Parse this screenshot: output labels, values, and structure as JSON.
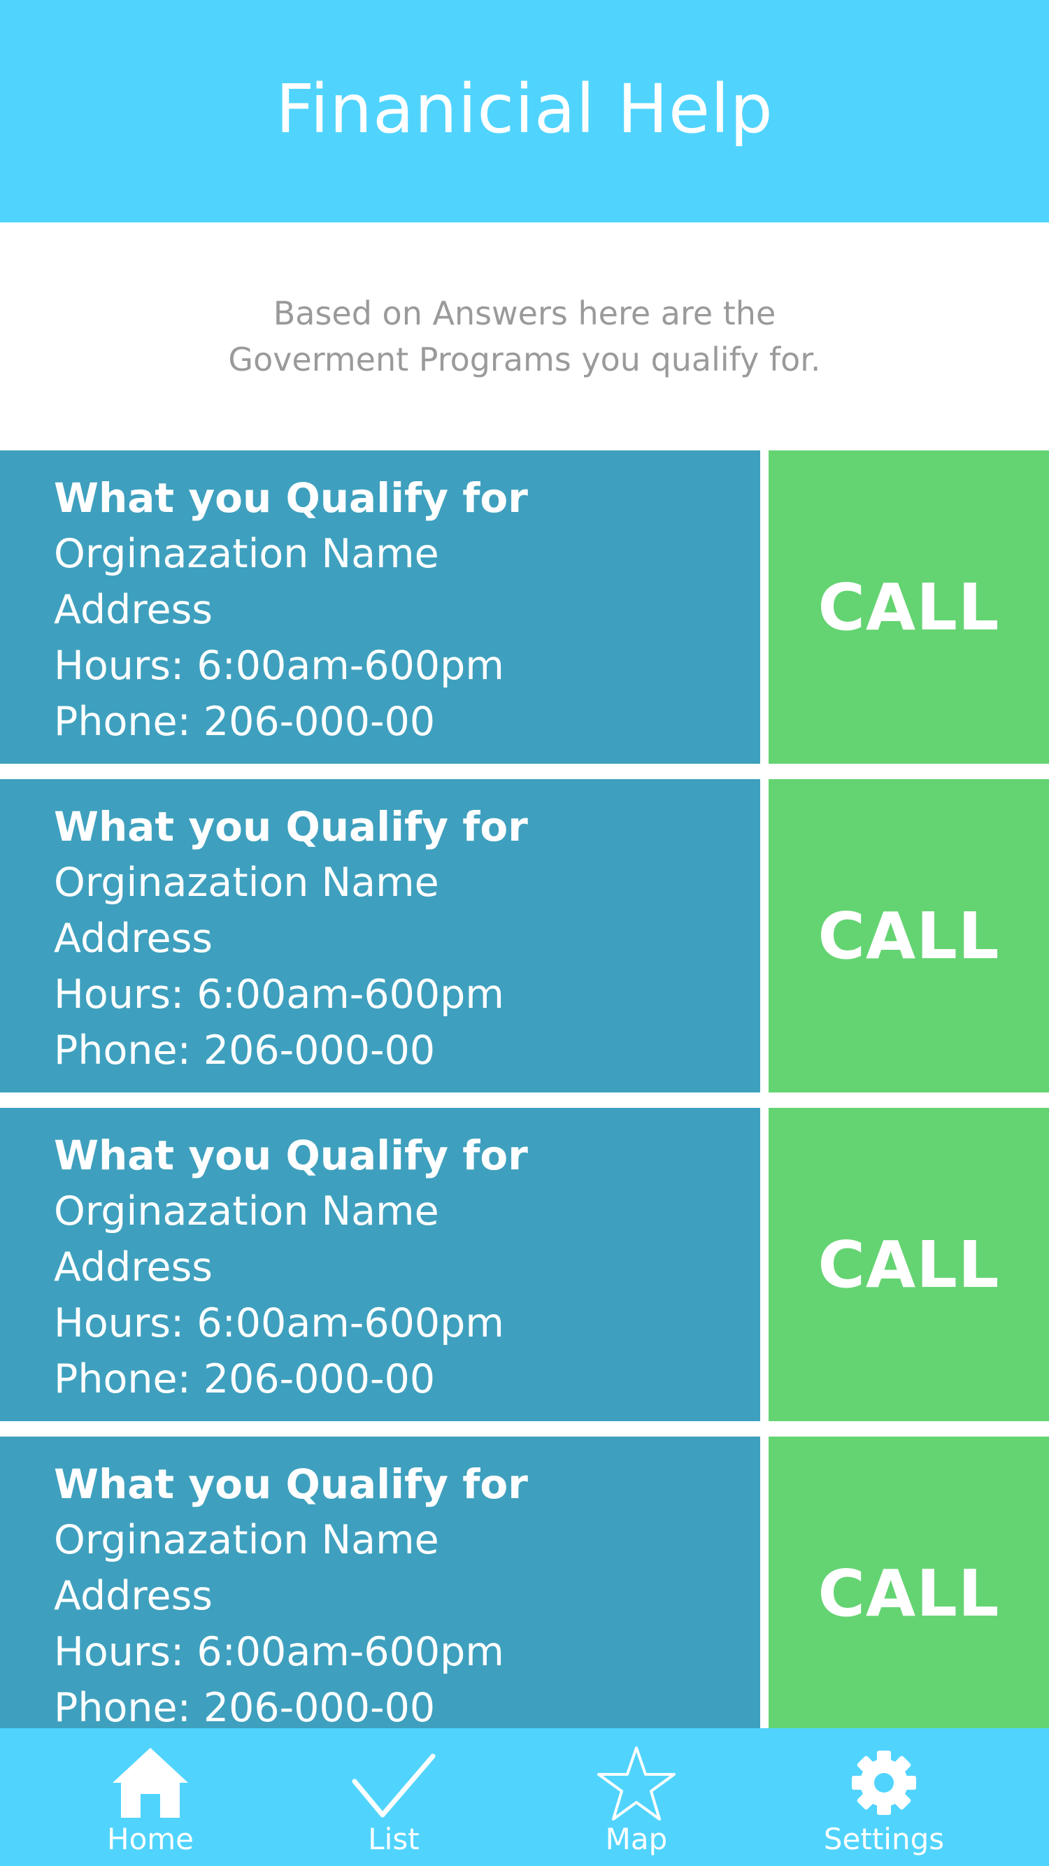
{
  "header": {
    "title": "Finanicial Help"
  },
  "intro": {
    "text": "Based on Answers here are the Goverment Programs you qualify for."
  },
  "programs": [
    {
      "heading": "What you Qualify for",
      "organization": "Orginazation Name",
      "address": "Address",
      "hours": "Hours: 6:00am-600pm",
      "phone": "Phone: 206-000-00",
      "call_label": "CALL"
    },
    {
      "heading": "What you Qualify for",
      "organization": "Orginazation Name",
      "address": "Address",
      "hours": "Hours: 6:00am-600pm",
      "phone": "Phone: 206-000-00",
      "call_label": "CALL"
    },
    {
      "heading": "What you Qualify for",
      "organization": "Orginazation Name",
      "address": "Address",
      "hours": "Hours: 6:00am-600pm",
      "phone": "Phone: 206-000-00",
      "call_label": "CALL"
    },
    {
      "heading": "What you Qualify for",
      "organization": "Orginazation Name",
      "address": "Address",
      "hours": "Hours: 6:00am-600pm",
      "phone": "Phone: 206-000-00",
      "call_label": "CALL"
    }
  ],
  "tabbar": {
    "items": [
      {
        "label": "Home",
        "icon": "home-icon"
      },
      {
        "label": "List",
        "icon": "checkmark-icon"
      },
      {
        "label": "Map",
        "icon": "star-icon"
      },
      {
        "label": "Settings",
        "icon": "gear-icon"
      }
    ]
  },
  "colors": {
    "header": "#50d4fe",
    "card": "#3ea0be",
    "call": "#64d472",
    "intro_text": "#9a9a9a"
  }
}
